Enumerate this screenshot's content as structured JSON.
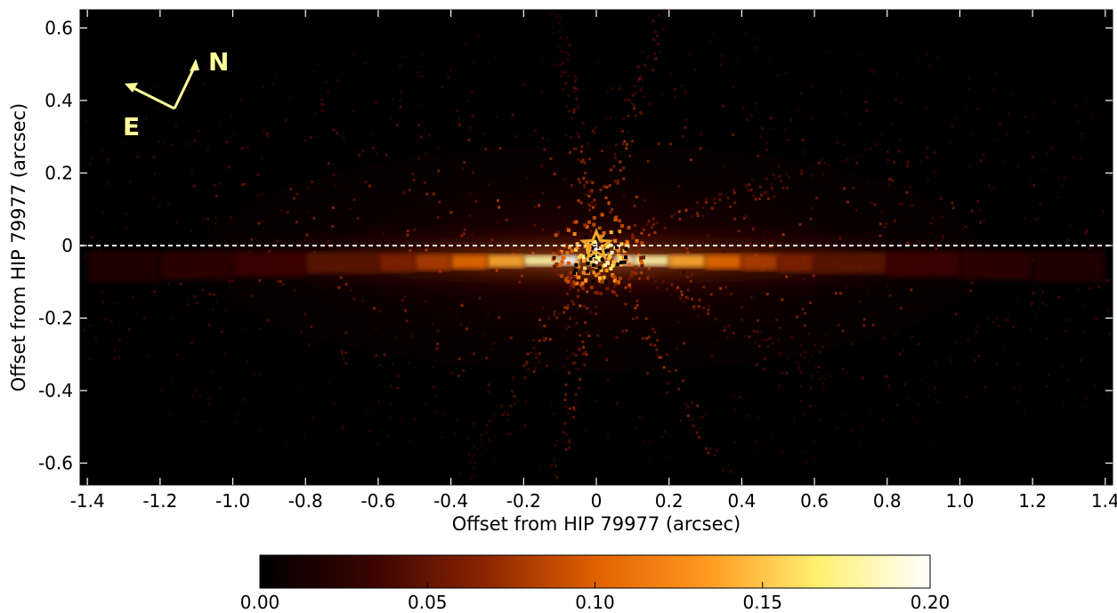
{
  "chart_data": {
    "type": "heatmap",
    "xlabel": "Offset from HIP 79977 (arcsec)",
    "ylabel": "Offset from HIP 79977 (arcsec)",
    "xlim": [
      -1.42,
      1.42
    ],
    "ylim": [
      -0.66,
      0.65
    ],
    "xticks": [
      -1.4,
      -1.2,
      -1.0,
      -0.8,
      -0.6,
      -0.4,
      -0.2,
      0.0,
      0.2,
      0.4,
      0.6,
      0.8,
      1.0,
      1.2,
      1.4
    ],
    "xtick_labels": [
      "-1.4",
      "-1.2",
      "-1.0",
      "-0.8",
      "-0.6",
      "-0.4",
      "-0.2",
      "0",
      "0.2",
      "0.4",
      "0.6",
      "0.8",
      "1.0",
      "1.2",
      "1.4"
    ],
    "yticks": [
      0.6,
      0.4,
      0.2,
      0.0,
      -0.2,
      -0.4,
      -0.6
    ],
    "ytick_labels": [
      "0.6",
      "0.4",
      "0.2",
      "0",
      "-0.2",
      "-0.4",
      "-0.6"
    ],
    "reference_line": {
      "y": 0.0,
      "style": "dashed",
      "color": "#ffffff"
    },
    "star_marker": {
      "x": 0.0,
      "y": 0.0,
      "color": "#f5a623",
      "shape": "star"
    },
    "compass": {
      "north_label": "N",
      "east_label": "E",
      "color": "#ffff99"
    },
    "colorbar": {
      "range": [
        0.0,
        0.2
      ],
      "ticks": [
        0.0,
        0.05,
        0.1,
        0.15,
        0.2
      ],
      "tick_labels": [
        "0.00",
        "0.05",
        "0.10",
        "0.15",
        "0.20"
      ],
      "colormap": [
        "#000000",
        "#3a0400",
        "#8a2400",
        "#e06000",
        "#ff9a20",
        "#fff070",
        "#ffffff"
      ]
    },
    "disk_profile": {
      "description_x": [
        0.05,
        0.1,
        0.2,
        0.3,
        0.4,
        0.5,
        0.6,
        0.8,
        1.0,
        1.2,
        1.4
      ],
      "intensity": [
        0.2,
        0.2,
        0.16,
        0.12,
        0.09,
        0.07,
        0.055,
        0.04,
        0.03,
        0.022,
        0.015
      ]
    },
    "grid": false
  }
}
